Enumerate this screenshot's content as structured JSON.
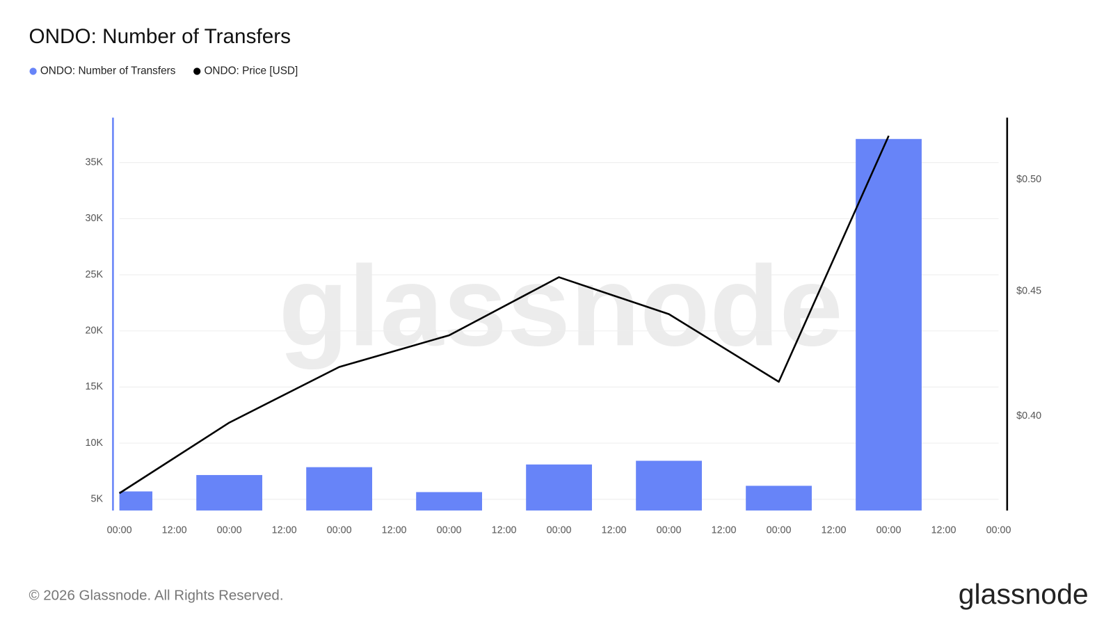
{
  "chart_data": {
    "type": "bar-line",
    "title": "ONDO: Number of Transfers",
    "x": [
      0,
      24,
      48,
      72,
      96,
      120,
      144,
      168
    ],
    "xlim": [
      0,
      192
    ],
    "xticks": [
      {
        "value": 0,
        "label": "00:00"
      },
      {
        "value": 12,
        "label": "12:00"
      },
      {
        "value": 24,
        "label": "00:00"
      },
      {
        "value": 36,
        "label": "12:00"
      },
      {
        "value": 48,
        "label": "00:00"
      },
      {
        "value": 60,
        "label": "12:00"
      },
      {
        "value": 72,
        "label": "00:00"
      },
      {
        "value": 84,
        "label": "12:00"
      },
      {
        "value": 96,
        "label": "00:00"
      },
      {
        "value": 108,
        "label": "12:00"
      },
      {
        "value": 120,
        "label": "00:00"
      },
      {
        "value": 132,
        "label": "12:00"
      },
      {
        "value": 144,
        "label": "00:00"
      },
      {
        "value": 156,
        "label": "12:00"
      },
      {
        "value": 168,
        "label": "00:00"
      },
      {
        "value": 180,
        "label": "12:00"
      },
      {
        "value": 192,
        "label": "00:00"
      }
    ],
    "ylim": [
      4000,
      39000
    ],
    "yticks": [
      {
        "value": 5000,
        "label": "5K"
      },
      {
        "value": 10000,
        "label": "10K"
      },
      {
        "value": 15000,
        "label": "15K"
      },
      {
        "value": 20000,
        "label": "20K"
      },
      {
        "value": 25000,
        "label": "25K"
      },
      {
        "value": 30000,
        "label": "30K"
      },
      {
        "value": 35000,
        "label": "35K"
      }
    ],
    "y2lim": [
      0.366,
      0.53
    ],
    "y2log": true,
    "y2ticks": [
      {
        "value": 0.4,
        "label": "$0.40"
      },
      {
        "value": 0.45,
        "label": "$0.45"
      },
      {
        "value": 0.5,
        "label": "$0.50"
      }
    ],
    "grid": true,
    "series": [
      {
        "name": "ONDO: Number of Transfers",
        "color": "#6784f8",
        "kind": "bar",
        "values": [
          5700,
          7160,
          7860,
          5640,
          8100,
          8430,
          6200,
          37100
        ]
      },
      {
        "name": "ONDO: Price [USD]",
        "color": "#000000",
        "kind": "line",
        "axis": "y2",
        "values": [
          0.372,
          0.3976,
          0.419,
          0.4317,
          0.456,
          0.4404,
          0.4132,
          0.521
        ]
      }
    ],
    "watermark": "glassnode",
    "footer": "© 2026 Glassnode. All Rights Reserved.",
    "logo": "glassnode"
  }
}
